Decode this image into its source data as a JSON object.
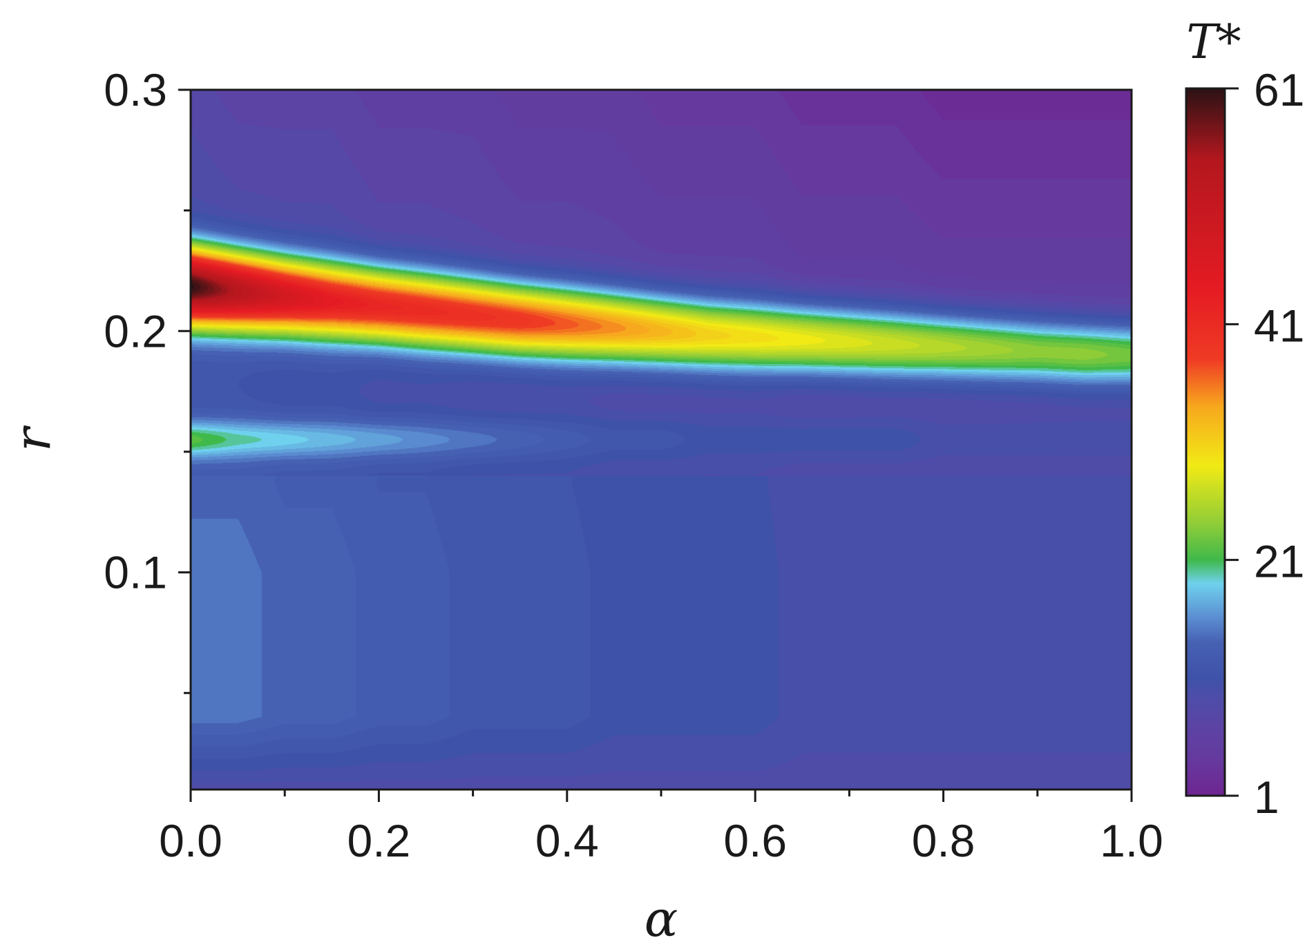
{
  "chart_data": {
    "type": "heatmap",
    "title": "",
    "xlabel": "α",
    "ylabel": "r",
    "xlim": [
      0.0,
      1.0
    ],
    "ylim": [
      0.01,
      0.3
    ],
    "x_ticks": [
      "0.0",
      "0.2",
      "0.4",
      "0.6",
      "0.8",
      "1.0"
    ],
    "x_tick_values": [
      0.0,
      0.2,
      0.4,
      0.6,
      0.8,
      1.0
    ],
    "x_minor_tick_values": [
      0.1,
      0.3,
      0.5,
      0.7,
      0.9
    ],
    "y_ticks": [
      "0.1",
      "0.2",
      "0.3"
    ],
    "y_tick_values": [
      0.1,
      0.2,
      0.3
    ],
    "y_minor_tick_values": [
      0.05,
      0.15,
      0.25
    ],
    "colorbar": {
      "label": "T*",
      "range": [
        1,
        61
      ],
      "tick_labels": [
        "1",
        "21",
        "41",
        "61"
      ],
      "tick_values": [
        1,
        21,
        41,
        61
      ],
      "colors": [
        "#6e2591",
        "#66399e",
        "#5b44a4",
        "#4c4ea8",
        "#3e52a9",
        "#4661b2",
        "#5a8bd0",
        "#6fd1ee",
        "#3fb94a",
        "#8ecc38",
        "#f1ea15",
        "#f7a81e",
        "#ef3b24",
        "#e51b23",
        "#b3171e",
        "#2a1214"
      ],
      "color_stops": [
        1,
        4,
        7,
        9.5,
        11,
        14,
        16,
        19,
        21,
        24,
        29,
        34,
        38,
        44,
        55,
        61
      ]
    },
    "grid": false,
    "z_grid": {
      "alpha": [
        0,
        0.05,
        0.1,
        0.15,
        0.2,
        0.25,
        0.3,
        0.35,
        0.4,
        0.45,
        0.5,
        0.55,
        0.6,
        0.65,
        0.7,
        0.75,
        0.8,
        0.85,
        0.9,
        0.95,
        1.0
      ],
      "r_centre": [
        0.2185,
        0.2165,
        0.2145,
        0.2125,
        0.2105,
        0.2085,
        0.2065,
        0.2045,
        0.203,
        0.2015,
        0.2,
        0.1985,
        0.1975,
        0.1965,
        0.1955,
        0.1945,
        0.1935,
        0.1925,
        0.1915,
        0.1905,
        0.19
      ],
      "band_peak_T": [
        61,
        54,
        48,
        44,
        42,
        41,
        40,
        39,
        37,
        35,
        33,
        31,
        30,
        29,
        28,
        27,
        26,
        25,
        24,
        24,
        23
      ],
      "lower_lobe_peak_T": [
        22,
        20,
        19,
        18,
        17,
        16,
        15,
        14,
        13,
        12,
        12,
        11,
        11,
        11,
        11,
        11,
        10,
        10,
        10,
        10,
        10
      ],
      "floor_T_at_r_0_1": [
        15,
        15,
        14,
        14,
        13,
        13,
        12,
        12,
        12,
        11,
        11,
        11,
        11,
        10,
        10,
        10,
        10,
        10,
        10,
        10,
        10
      ],
      "top_T_at_r_0_3": [
        8,
        7,
        7,
        7,
        6,
        6,
        6,
        5,
        5,
        5,
        4,
        4,
        4,
        3,
        3,
        3,
        2,
        2,
        2,
        2,
        2
      ]
    }
  }
}
